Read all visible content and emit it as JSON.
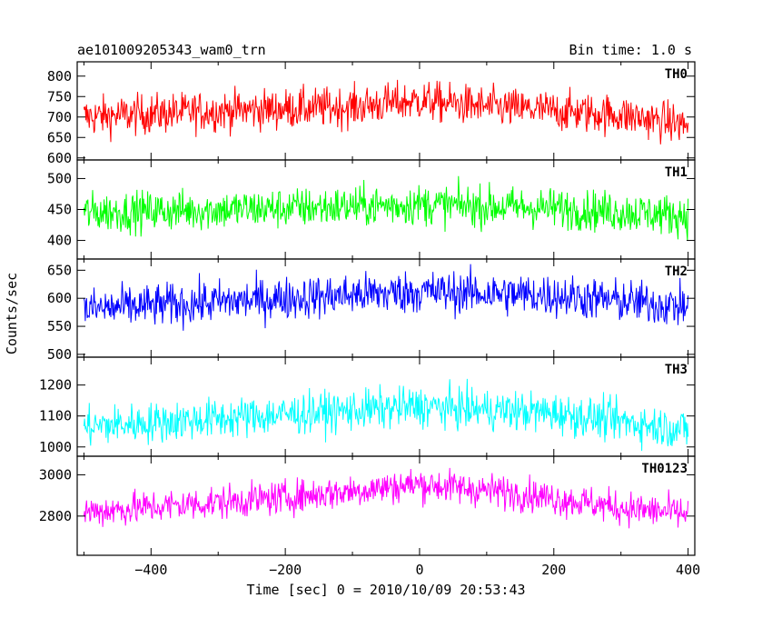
{
  "header": {
    "left": "ae101009205343_wam0_trn",
    "right": "Bin time: 1.0 s"
  },
  "axes": {
    "xlabel": "Time [sec] 0 = 2010/10/09 20:53:43",
    "ylabel": "Counts/sec"
  },
  "chart_data": {
    "type": "line",
    "x_range": [
      -510,
      410
    ],
    "bin_seconds": 1.0,
    "x_ticks": [
      -400,
      -200,
      0,
      200,
      400
    ],
    "x_tick_labels": [
      "−400",
      "−200",
      "0",
      "200",
      "400"
    ],
    "panels": [
      {
        "name": "TH0",
        "color": "#ff0000",
        "ylim": [
          595,
          835
        ],
        "y_ticks": [
          600,
          650,
          700,
          750,
          800
        ],
        "trend": [
          [
            -500,
            700
          ],
          [
            -300,
            715
          ],
          [
            -100,
            725
          ],
          [
            0,
            740
          ],
          [
            100,
            725
          ],
          [
            300,
            705
          ],
          [
            400,
            680
          ]
        ],
        "noise": 45
      },
      {
        "name": "TH1",
        "color": "#00ff00",
        "ylim": [
          370,
          530
        ],
        "y_ticks": [
          400,
          450,
          500
        ],
        "trend": [
          [
            -500,
            445
          ],
          [
            -200,
            452
          ],
          [
            0,
            458
          ],
          [
            200,
            452
          ],
          [
            400,
            440
          ]
        ],
        "noise": 30
      },
      {
        "name": "TH2",
        "color": "#0000ff",
        "ylim": [
          495,
          670
        ],
        "y_ticks": [
          500,
          550,
          600,
          650
        ],
        "trend": [
          [
            -500,
            580
          ],
          [
            -200,
            600
          ],
          [
            0,
            612
          ],
          [
            200,
            605
          ],
          [
            400,
            585
          ]
        ],
        "noise": 35
      },
      {
        "name": "TH3",
        "color": "#00ffff",
        "ylim": [
          970,
          1290
        ],
        "y_ticks": [
          1000,
          1100,
          1200
        ],
        "trend": [
          [
            -500,
            1065
          ],
          [
            -200,
            1105
          ],
          [
            0,
            1130
          ],
          [
            200,
            1110
          ],
          [
            400,
            1055
          ]
        ],
        "noise": 60
      },
      {
        "name": "TH0123",
        "color": "#ff00ff",
        "ylim": [
          2610,
          3090
        ],
        "y_ticks": [
          2800,
          3000
        ],
        "trend": [
          [
            -500,
            2820
          ],
          [
            -200,
            2890
          ],
          [
            0,
            2955
          ],
          [
            150,
            2910
          ],
          [
            300,
            2840
          ],
          [
            400,
            2810
          ]
        ],
        "noise": 75
      }
    ]
  }
}
